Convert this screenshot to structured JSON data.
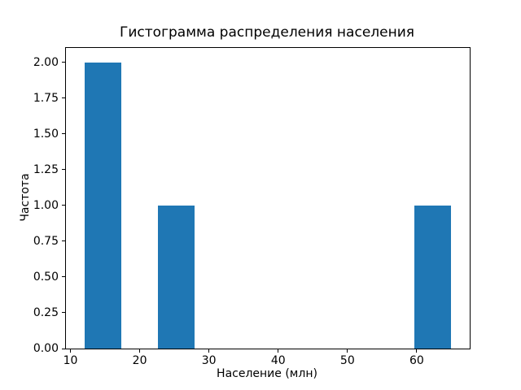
{
  "chart_data": {
    "type": "bar",
    "title": "Гистограмма распределения населения",
    "xlabel": "Население (млн)",
    "ylabel": "Частота",
    "bars": [
      {
        "x0": 12.0,
        "x1": 17.3,
        "frequency": 2
      },
      {
        "x0": 22.6,
        "x1": 27.9,
        "frequency": 1
      },
      {
        "x0": 59.7,
        "x1": 65.0,
        "frequency": 1
      }
    ],
    "bin_width": 5.3,
    "xlim": [
      9.35,
      67.65
    ],
    "ylim": [
      0,
      2.1
    ],
    "xticks": {
      "values": [
        10,
        20,
        30,
        40,
        50,
        60
      ],
      "labels": [
        "10",
        "20",
        "30",
        "40",
        "50",
        "60"
      ]
    },
    "yticks": {
      "values": [
        0,
        0.25,
        0.5,
        0.75,
        1.0,
        1.25,
        1.5,
        1.75,
        2.0
      ],
      "labels": [
        "0.00",
        "0.25",
        "0.50",
        "0.75",
        "1.00",
        "1.25",
        "1.50",
        "1.75",
        "2.00"
      ]
    },
    "bar_color": "#1f77b4",
    "text_color": "#000000",
    "background": "#ffffff",
    "grid": false,
    "legend": null
  }
}
